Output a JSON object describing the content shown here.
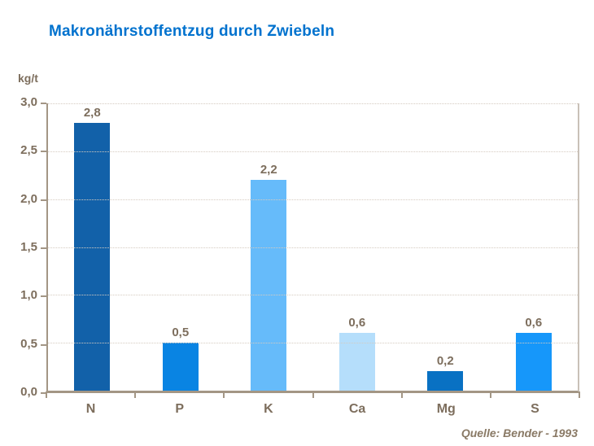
{
  "header": {
    "title": "Makronährstoffentzug durch Zwiebeln"
  },
  "chart_data": {
    "type": "bar",
    "title": "Makronährstoffentzug durch Zwiebeln",
    "unit_label": "kg/t",
    "categories": [
      "N",
      "P",
      "K",
      "Ca",
      "Mg",
      "S"
    ],
    "values": [
      2.8,
      0.5,
      2.2,
      0.6,
      0.2,
      0.6
    ],
    "value_labels": [
      "2,8",
      "0,5",
      "2,2",
      "0,6",
      "0,2",
      "0,6"
    ],
    "bar_colors": [
      "#1261A9",
      "#0984E3",
      "#66BBFA",
      "#B5DEFB",
      "#0971C3",
      "#1697FA"
    ],
    "xlabel": "",
    "ylabel": "kg/t",
    "ylim": [
      0,
      3.0
    ],
    "yticks": [
      0,
      0.5,
      1.0,
      1.5,
      2.0,
      2.5,
      3.0
    ],
    "ytick_labels": [
      "0,0",
      "0,5",
      "1,0",
      "1,5",
      "2,0",
      "2,5",
      "3,0"
    ],
    "grid": true,
    "grid_style": "dotted horizontal",
    "legend": false,
    "source": "Quelle: Bender - 1993"
  },
  "colors": {
    "title": "#0072CE",
    "axis_label": "#7D6E5D",
    "axis_line": "#A39685",
    "plot_border": "#C9C1B8",
    "gridline": "#D5CBC0",
    "background": "#FFFFFF"
  }
}
